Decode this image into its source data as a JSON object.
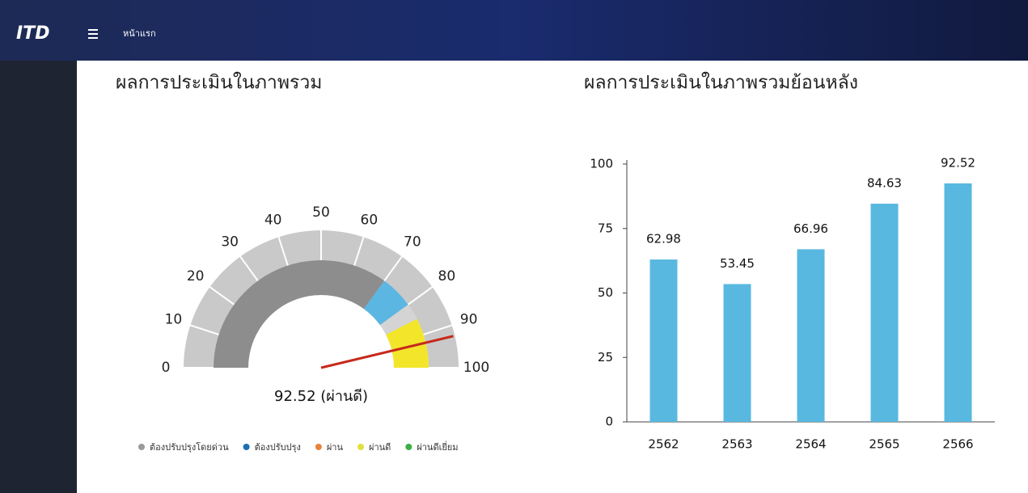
{
  "header": {
    "logo": "ITD",
    "menu": "หน้าแรก"
  },
  "chart_data": [
    {
      "type": "gauge",
      "title": "ผลการประเมินในภาพรวม",
      "values": [
        92.52
      ],
      "value_labels": [
        "92.52 (ผ่านดี)"
      ],
      "lim": [
        0,
        100
      ],
      "ticks": [
        0,
        10,
        20,
        30,
        40,
        50,
        60,
        70,
        80,
        90,
        100
      ],
      "ring_color": "#c9c9c9",
      "needle_color": "#c62a1c",
      "bands": [
        {
          "from": 0,
          "to": 70,
          "color": "#8d8d8d"
        },
        {
          "from": 70,
          "to": 80,
          "color": "#5cb6e2"
        },
        {
          "from": 85,
          "to": 100,
          "color": "#f3e62a"
        }
      ],
      "legend": [
        {
          "name": "ต้องปรับปรุงโดยด่วน",
          "color": "#9a9a9a"
        },
        {
          "name": "ต้องปรับปรุง",
          "color": "#1f6fb5"
        },
        {
          "name": "ผ่าน",
          "color": "#e8843a"
        },
        {
          "name": "ผ่านดี",
          "color": "#e3df3e"
        },
        {
          "name": "ผ่านดีเยี่ยม",
          "color": "#3cb043"
        }
      ]
    },
    {
      "type": "bar",
      "title": "ผลการประเมินในภาพรวมย้อนหลัง",
      "categories": [
        "2562",
        "2563",
        "2564",
        "2565",
        "2566"
      ],
      "values": [
        62.98,
        53.45,
        66.96,
        84.63,
        92.52
      ],
      "color": "#58b8e0",
      "ylim": [
        0,
        100
      ],
      "yticks": [
        0,
        25,
        50,
        75,
        100
      ]
    }
  ]
}
